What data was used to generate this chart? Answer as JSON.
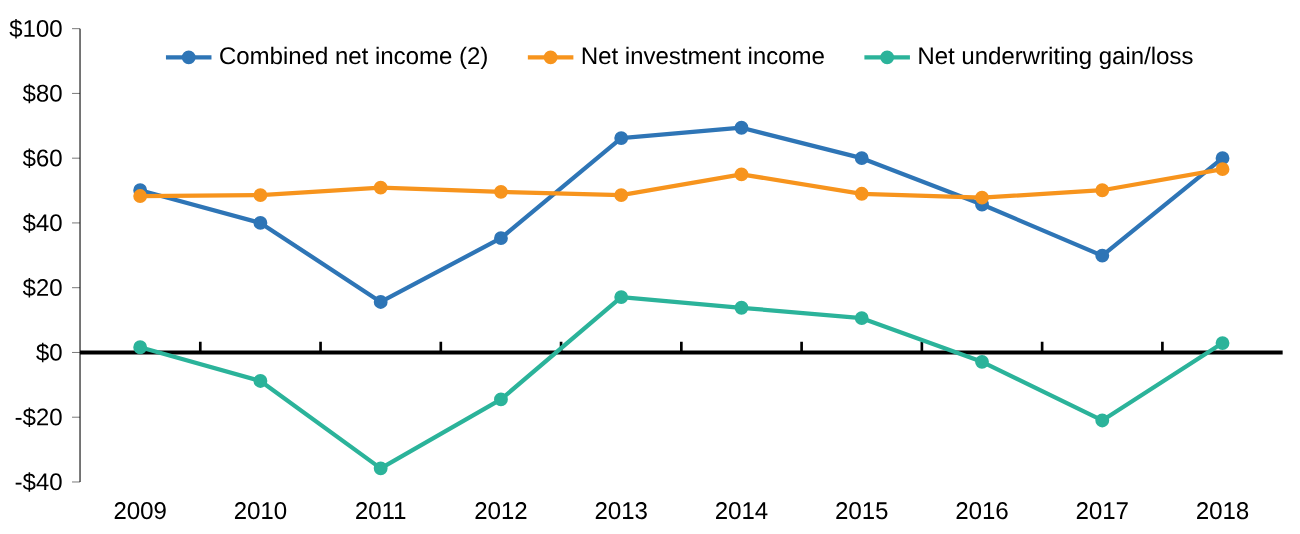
{
  "chart_data": {
    "type": "line",
    "categories": [
      "2009",
      "2010",
      "2011",
      "2012",
      "2013",
      "2014",
      "2015",
      "2016",
      "2017",
      "2018"
    ],
    "series": [
      {
        "name": "Combined net income (2)",
        "color": "#2e75b6",
        "values": [
          50.1,
          40,
          15.6,
          35.3,
          66.2,
          69.4,
          60,
          45.7,
          29.9,
          60
        ]
      },
      {
        "name": "Net investment income",
        "color": "#f7941d",
        "values": [
          48.3,
          48.6,
          50.9,
          49.6,
          48.6,
          55,
          49,
          47.8,
          50.1,
          56.6
        ]
      },
      {
        "name": "Net underwriting gain/loss",
        "color": "#2bb39a",
        "values": [
          1.6,
          -8.8,
          -35.8,
          -14.5,
          17.1,
          13.8,
          10.6,
          -2.9,
          -21,
          2.9
        ]
      }
    ],
    "ylim": [
      -40,
      100
    ],
    "yticks": [
      {
        "value": -40,
        "label": "-$40"
      },
      {
        "value": -20,
        "label": "-$20"
      },
      {
        "value": 0,
        "label": "$0"
      },
      {
        "value": 20,
        "label": "$20"
      },
      {
        "value": 40,
        "label": "$40"
      },
      {
        "value": 60,
        "label": "$60"
      },
      {
        "value": 80,
        "label": "$80"
      },
      {
        "value": 100,
        "label": "$100"
      }
    ],
    "legend": "top",
    "marker": "circle",
    "line_style": "solid"
  }
}
